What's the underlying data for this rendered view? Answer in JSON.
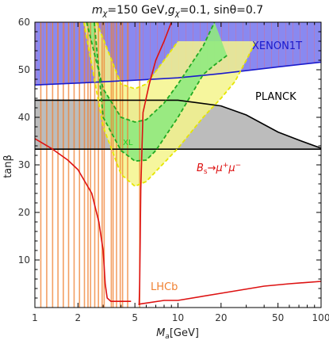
{
  "chart_data": {
    "type": "region_plot",
    "title": "m_χ=150 GeV,g_χ=0.1, sinθ=0.7",
    "title_parts": {
      "m_sym": "m",
      "m_sub": "χ",
      "m_rest": "=150 GeV,",
      "g_sym": "g",
      "g_sub": "χ",
      "g_rest": "=0.1, sinθ=0.7"
    },
    "xlabel": "M_a[GeV]",
    "xlabel_parts": {
      "sym": "M",
      "sub": "a",
      "rest": "[GeV]"
    },
    "ylabel": "tanβ",
    "x_scale": "log",
    "xlim": [
      1,
      100
    ],
    "ylim": [
      0,
      60
    ],
    "x_ticks": [
      1,
      2,
      5,
      10,
      20,
      50,
      100
    ],
    "y_ticks": [
      10,
      20,
      30,
      40,
      50,
      60
    ],
    "grid": false,
    "regions": [
      {
        "name": "XENON1T",
        "label": "XENON1T",
        "color": "#1a1acc",
        "fill": "#8a8af0",
        "hatched": true,
        "boundary": [
          [
            1,
            46.8
          ],
          [
            2,
            47.2
          ],
          [
            5,
            47.8
          ],
          [
            10,
            48.3
          ],
          [
            20,
            49.2
          ],
          [
            50,
            50.6
          ],
          [
            100,
            51.6
          ]
        ],
        "excluded_side": "above"
      },
      {
        "name": "PLANCK",
        "label": "PLANCK",
        "color": "#000000",
        "fill": "#bdbdbd",
        "upper": [
          [
            1,
            43.6
          ],
          [
            5,
            43.6
          ],
          [
            10,
            43.6
          ],
          [
            20,
            42.4
          ],
          [
            30,
            40.5
          ],
          [
            50,
            36.9
          ],
          [
            70,
            35.2
          ],
          [
            100,
            33.5
          ]
        ],
        "lower": [
          [
            1,
            33.3
          ],
          [
            10,
            33.3
          ],
          [
            100,
            33.3
          ]
        ]
      },
      {
        "name": "green_band",
        "label": "",
        "color": "#22aa22",
        "fill": "#a0ee90",
        "outer": [
          [
            2.3,
            60
          ],
          [
            3,
            46
          ],
          [
            4,
            40
          ],
          [
            5,
            39
          ],
          [
            6,
            39.5
          ],
          [
            8,
            43
          ],
          [
            10,
            47
          ],
          [
            15,
            55
          ],
          [
            18,
            60
          ]
        ],
        "inner": [
          [
            2.6,
            60
          ],
          [
            3,
            40
          ],
          [
            4,
            33
          ],
          [
            5,
            30.8
          ],
          [
            6,
            31
          ],
          [
            7,
            33
          ],
          [
            10,
            40
          ],
          [
            15,
            49
          ],
          [
            18,
            51
          ],
          [
            22,
            53
          ]
        ]
      },
      {
        "name": "yellow_band",
        "label": "",
        "color": "#e6e600",
        "fill": "#f5f58c",
        "outer": [
          [
            2.2,
            60
          ],
          [
            3,
            38
          ],
          [
            4,
            28
          ],
          [
            5,
            25.5
          ],
          [
            6,
            26.5
          ],
          [
            10,
            33.5
          ],
          [
            15,
            40
          ],
          [
            20,
            44
          ],
          [
            25,
            47.5
          ],
          [
            30,
            52
          ],
          [
            35,
            56
          ]
        ],
        "inner": [
          [
            2.7,
            60
          ],
          [
            4,
            47
          ],
          [
            5,
            46
          ],
          [
            6,
            47
          ],
          [
            8,
            52
          ],
          [
            10,
            56
          ]
        ]
      },
      {
        "name": "Bs_mumu",
        "label": "B_s→μ^+μ^-",
        "label_parts": {
          "b": "B",
          "b_sub": "s",
          "arrow": "→",
          "mu1": "μ",
          "mu1_sup": "+",
          "mu2": "μ",
          "mu2_sup": "−"
        },
        "color": "#dd1111",
        "left_curve": [
          [
            1,
            35.5
          ],
          [
            1.3,
            33.5
          ],
          [
            1.7,
            31
          ],
          [
            2,
            29
          ],
          [
            2.5,
            24
          ],
          [
            2.8,
            18
          ],
          [
            3,
            12
          ],
          [
            3.1,
            5
          ],
          [
            3.2,
            2
          ],
          [
            3.4,
            1.3
          ],
          [
            4.7,
            1.3
          ]
        ],
        "right_curve": [
          [
            5.35,
            0.5
          ],
          [
            5.4,
            5
          ],
          [
            5.5,
            25
          ],
          [
            5.7,
            41
          ],
          [
            6.3,
            47
          ],
          [
            7,
            52
          ],
          [
            8,
            56
          ],
          [
            9,
            60
          ]
        ],
        "low_curve": [
          [
            5.3,
            0.7
          ],
          [
            8,
            1.5
          ],
          [
            10,
            1.5
          ],
          [
            20,
            3
          ],
          [
            40,
            4.5
          ],
          [
            60,
            5
          ],
          [
            100,
            5.5
          ]
        ]
      },
      {
        "name": "LHCb",
        "label": "LHCb",
        "color": "#f08030",
        "excluded_masses": [
          1.1,
          1.21,
          1.33,
          1.45,
          1.58,
          1.72,
          1.88,
          2.05,
          2.22,
          2.35,
          2.45,
          2.62,
          2.78,
          2.95,
          3.05,
          3.42,
          3.52,
          3.72,
          3.95,
          4.1,
          4.45,
          5.4
        ]
      }
    ],
    "labels": {
      "xenon": "XENON1T",
      "planck": "PLANCK",
      "lhcb": "LHCb",
      "small_green": "XL"
    }
  }
}
